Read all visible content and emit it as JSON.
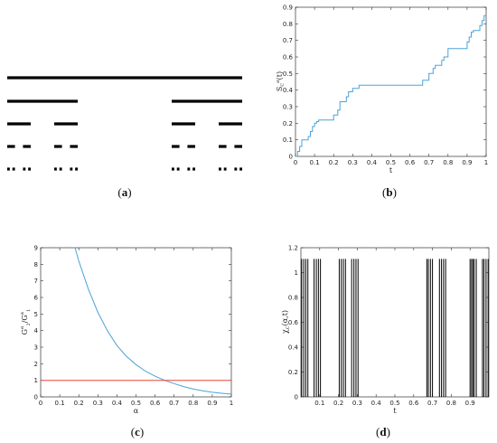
{
  "chart_data": [
    {
      "panel": "(a)",
      "type": "cantor-set",
      "caption": {
        "open": "(",
        "letter": "a",
        "close": ")"
      },
      "levels": [
        [
          [
            0,
            1
          ]
        ],
        [
          [
            0,
            0.3
          ],
          [
            0.7,
            1
          ]
        ],
        [
          [
            0,
            0.1
          ],
          [
            0.2,
            0.3
          ],
          [
            0.7,
            0.8
          ],
          [
            0.9,
            1
          ]
        ],
        [
          [
            0,
            0.033
          ],
          [
            0.067,
            0.1
          ],
          [
            0.2,
            0.233
          ],
          [
            0.267,
            0.3
          ],
          [
            0.7,
            0.733
          ],
          [
            0.767,
            0.8
          ],
          [
            0.9,
            0.933
          ],
          [
            0.967,
            1
          ]
        ],
        [
          [
            0,
            0.011
          ],
          [
            0.022,
            0.033
          ],
          [
            0.067,
            0.078
          ],
          [
            0.089,
            0.1
          ],
          [
            0.2,
            0.211
          ],
          [
            0.222,
            0.233
          ],
          [
            0.267,
            0.278
          ],
          [
            0.289,
            0.3
          ],
          [
            0.7,
            0.711
          ],
          [
            0.722,
            0.733
          ],
          [
            0.767,
            0.778
          ],
          [
            0.789,
            0.8
          ],
          [
            0.9,
            0.911
          ],
          [
            0.922,
            0.933
          ],
          [
            0.967,
            0.978
          ],
          [
            0.989,
            1
          ]
        ]
      ]
    },
    {
      "panel": "(b)",
      "type": "line",
      "caption": {
        "open": "(",
        "letter": "b",
        "close": ")"
      },
      "xlabel": "t",
      "ylabel": "S_C^α(t)",
      "xlim": [
        0,
        1
      ],
      "ylim": [
        0,
        0.9
      ],
      "xticks": [
        "0",
        "0.1",
        "0.2",
        "0.3",
        "0.4",
        "0.5",
        "0.6",
        "0.7",
        "0.8",
        "0.9",
        "1"
      ],
      "yticks": [
        "0",
        "0.1",
        "0.2",
        "0.3",
        "0.4",
        "0.5",
        "0.6",
        "0.7",
        "0.8",
        "0.9"
      ],
      "color": "#4aa3d8",
      "x": [
        0,
        0.011,
        0.011,
        0.022,
        0.022,
        0.033,
        0.033,
        0.067,
        0.067,
        0.078,
        0.078,
        0.089,
        0.089,
        0.1,
        0.1,
        0.111,
        0.111,
        0.122,
        0.122,
        0.133,
        0.133,
        0.2,
        0.2,
        0.222,
        0.222,
        0.233,
        0.233,
        0.267,
        0.267,
        0.278,
        0.278,
        0.3,
        0.3,
        0.333,
        0.333,
        0.667,
        0.667,
        0.7,
        0.7,
        0.722,
        0.722,
        0.733,
        0.733,
        0.767,
        0.767,
        0.778,
        0.778,
        0.8,
        0.8,
        0.8,
        0.9,
        0.9,
        0.911,
        0.911,
        0.922,
        0.922,
        0.933,
        0.933,
        0.967,
        0.967,
        0.978,
        0.978,
        0.989,
        0.989,
        1
      ],
      "y": [
        0,
        0,
        0.03,
        0.03,
        0.06,
        0.06,
        0.1,
        0.1,
        0.12,
        0.12,
        0.15,
        0.15,
        0.18,
        0.18,
        0.2,
        0.2,
        0.21,
        0.21,
        0.22,
        0.22,
        0.22,
        0.22,
        0.25,
        0.25,
        0.28,
        0.28,
        0.33,
        0.33,
        0.36,
        0.36,
        0.39,
        0.39,
        0.41,
        0.41,
        0.43,
        0.43,
        0.46,
        0.46,
        0.5,
        0.5,
        0.53,
        0.53,
        0.55,
        0.55,
        0.58,
        0.58,
        0.6,
        0.6,
        0.65,
        0.65,
        0.65,
        0.69,
        0.69,
        0.72,
        0.72,
        0.75,
        0.75,
        0.76,
        0.76,
        0.79,
        0.79,
        0.82,
        0.82,
        0.85,
        0.85
      ]
    },
    {
      "panel": "(c)",
      "type": "line",
      "caption": {
        "open": "(",
        "letter": "c",
        "close": ")"
      },
      "xlabel": "α",
      "ylabel": "G^α_2/G^α_1",
      "xlim": [
        0,
        1
      ],
      "ylim": [
        0,
        9
      ],
      "xticks": [
        "0",
        "0.1",
        "0.2",
        "0.3",
        "0.4",
        "0.5",
        "0.6",
        "0.7",
        "0.8",
        "0.9",
        "1"
      ],
      "yticks": [
        "0",
        "1",
        "2",
        "3",
        "4",
        "5",
        "6",
        "7",
        "8",
        "9"
      ],
      "series": [
        {
          "color": "#4aa3d8",
          "x": [
            0.18,
            0.2,
            0.25,
            0.3,
            0.35,
            0.4,
            0.45,
            0.5,
            0.55,
            0.6,
            0.65,
            0.7,
            0.75,
            0.8,
            0.85,
            0.9,
            0.95,
            1.0
          ],
          "y": [
            9,
            8.2,
            6.5,
            5.1,
            4.0,
            3.1,
            2.45,
            1.95,
            1.55,
            1.25,
            1.0,
            0.8,
            0.62,
            0.48,
            0.37,
            0.28,
            0.22,
            0.17
          ]
        },
        {
          "color": "#e8453c",
          "x": [
            0,
            1
          ],
          "y": [
            1,
            1
          ]
        }
      ]
    },
    {
      "panel": "(d)",
      "type": "spikes",
      "caption": {
        "open": "(",
        "letter": "d",
        "close": ")"
      },
      "xlabel": "t",
      "ylabel": "χ_C(α,t)",
      "xlim": [
        0,
        1
      ],
      "ylim": [
        0,
        1.2
      ],
      "height": 1.11,
      "xticks": [
        "0.1",
        "0.2",
        "0.3",
        "0.4",
        "0.5",
        "0.6",
        "0.7",
        "0.8",
        "0.9"
      ],
      "yticks": [
        "0",
        "0.2",
        "0.4",
        "0.6",
        "0.8",
        "1",
        "1.2"
      ],
      "x": [
        0.004,
        0.015,
        0.026,
        0.037,
        0.07,
        0.082,
        0.093,
        0.104,
        0.204,
        0.215,
        0.226,
        0.237,
        0.27,
        0.282,
        0.293,
        0.304,
        0.67,
        0.678,
        0.689,
        0.7,
        0.737,
        0.748,
        0.759,
        0.77,
        0.9,
        0.908,
        0.915,
        0.922,
        0.933,
        0.966,
        0.974,
        0.985,
        0.996
      ]
    }
  ]
}
